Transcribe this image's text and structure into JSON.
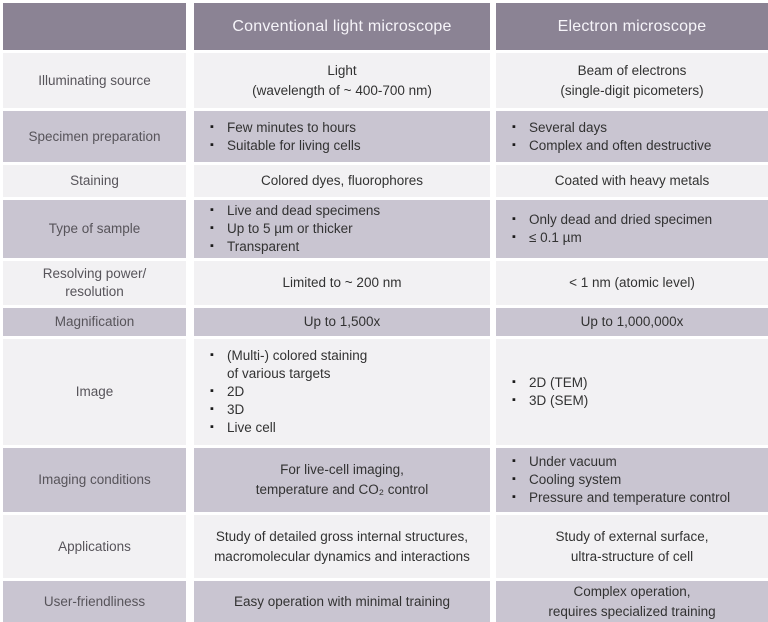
{
  "colors": {
    "header_bg": "#8b8394",
    "row_lavender_bg": "#c9c5d1",
    "row_light_bg": "#f2f1f3",
    "gutter": "#ffffff",
    "header_text": "#f6f4f9",
    "label_text": "#57545a",
    "body_text": "#323232"
  },
  "table": {
    "header": {
      "blank": "",
      "light_microscope": "Conventional light microscope",
      "electron_microscope": "Electron microscope"
    },
    "rows": [
      {
        "label": "Illuminating source",
        "light": {
          "text": "Light\n(wavelength of ~ 400-700 nm)"
        },
        "electron": {
          "text": "Beam of electrons\n(single-digit picometers)"
        }
      },
      {
        "label": "Specimen preparation",
        "light": {
          "bullets": [
            "Few minutes to hours",
            "Suitable for living cells"
          ]
        },
        "electron": {
          "bullets": [
            "Several days",
            "Complex and often destructive"
          ]
        }
      },
      {
        "label": "Staining",
        "light": {
          "text": "Colored dyes, fluorophores"
        },
        "electron": {
          "text": "Coated with heavy metals"
        }
      },
      {
        "label": "Type of sample",
        "light": {
          "bullets": [
            "Live and dead specimens",
            "Up to 5 µm or thicker",
            "Transparent"
          ]
        },
        "electron": {
          "bullets": [
            "Only dead and dried specimen",
            "≤ 0.1 µm"
          ]
        }
      },
      {
        "label": "Resolving power/\nresolution",
        "light": {
          "text": "Limited to ~ 200 nm"
        },
        "electron": {
          "text": "< 1 nm (atomic level)"
        }
      },
      {
        "label": "Magnification",
        "light": {
          "text": "Up to 1,500x"
        },
        "electron": {
          "text": "Up to 1,000,000x"
        }
      },
      {
        "label": "Image",
        "light": {
          "bullets": [
            "(Multi-) colored staining\nof various targets",
            "2D",
            "3D",
            "Live cell"
          ]
        },
        "electron": {
          "bullets": [
            "2D (TEM)",
            "3D (SEM)"
          ]
        }
      },
      {
        "label": "Imaging conditions",
        "light": {
          "text": "For live-cell imaging,\ntemperature and CO₂ control"
        },
        "electron": {
          "bullets": [
            "Under vacuum",
            "Cooling system",
            "Pressure and temperature control"
          ]
        }
      },
      {
        "label": "Applications",
        "light": {
          "text": "Study of detailed gross internal structures,\nmacromolecular dynamics and interactions"
        },
        "electron": {
          "text": "Study of external surface,\nultra-structure of cell"
        }
      },
      {
        "label": "User-friendliness",
        "light": {
          "text": "Easy operation with minimal training"
        },
        "electron": {
          "text": "Complex operation,\nrequires specialized training"
        }
      }
    ]
  }
}
